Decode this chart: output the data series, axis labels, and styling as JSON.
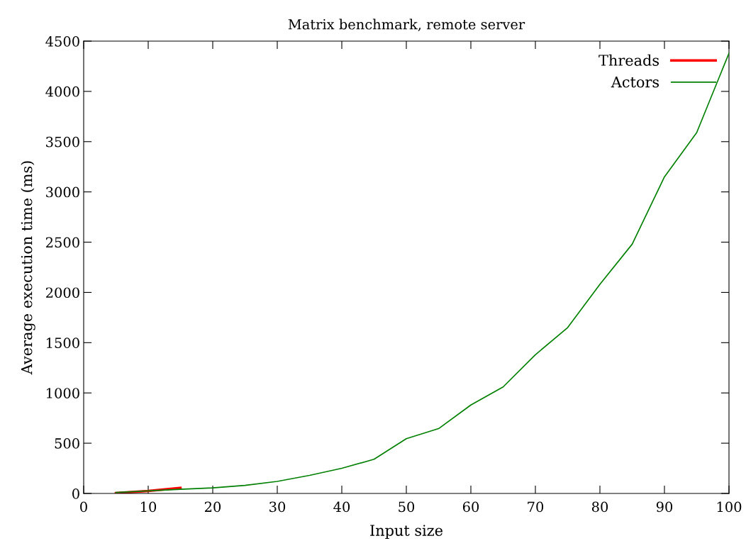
{
  "chart_data": {
    "type": "line",
    "title": "Matrix benchmark, remote server",
    "xlabel": "Input size",
    "ylabel": "Average execution time (ms)",
    "x": [
      5,
      10,
      15,
      20,
      25,
      30,
      35,
      40,
      45,
      50,
      55,
      60,
      65,
      70,
      75,
      80,
      85,
      90,
      95,
      100
    ],
    "series": [
      {
        "name": "Threads",
        "color": "#ff0000",
        "x": [
          5,
          10,
          15
        ],
        "values": [
          3,
          25,
          55
        ]
      },
      {
        "name": "Actors",
        "color": "#008000",
        "values": [
          10,
          25,
          42,
          55,
          80,
          120,
          180,
          250,
          340,
          545,
          645,
          880,
          1060,
          1380,
          1650,
          2080,
          2480,
          3150,
          3590,
          4380
        ]
      }
    ],
    "xlim": [
      0,
      100
    ],
    "xticks": [
      0,
      10,
      20,
      30,
      40,
      50,
      60,
      70,
      80,
      90,
      100
    ],
    "ylim": [
      0,
      4500
    ],
    "yticks": [
      0,
      500,
      1000,
      1500,
      2000,
      2500,
      3000,
      3500,
      4000,
      4500
    ],
    "grid": false,
    "legend": "top right",
    "marker": "none",
    "line_style": "solid"
  }
}
